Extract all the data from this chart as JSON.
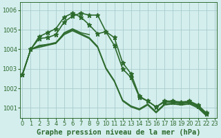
{
  "title": "Graphe pression niveau de la mer (hPa)",
  "bg_color": "#d4eeee",
  "grid_color": "#aacccc",
  "line_color": "#2d6a2d",
  "ylim": [
    1000.5,
    1006.4
  ],
  "yticks": [
    1001,
    1002,
    1003,
    1004,
    1005,
    1006
  ],
  "xlim": [
    -0.3,
    23.3
  ],
  "xticks": [
    0,
    1,
    2,
    3,
    4,
    5,
    6,
    7,
    8,
    9,
    10,
    11,
    12,
    13,
    14,
    15,
    16,
    17,
    18,
    19,
    20,
    21,
    22,
    23
  ],
  "series": [
    {
      "x": [
        0,
        1,
        2,
        3,
        4,
        5,
        6,
        7,
        8,
        9,
        10,
        11,
        12,
        13,
        14,
        15,
        16,
        17,
        18,
        19,
        20,
        21,
        22
      ],
      "y": [
        1002.7,
        1004.0,
        1004.65,
        1004.85,
        1005.05,
        1005.65,
        1005.85,
        1005.65,
        1005.25,
        1004.8,
        1004.9,
        1004.2,
        1003.0,
        1002.55,
        1001.55,
        1001.35,
        1001.05,
        1001.35,
        1001.35,
        1001.3,
        1001.35,
        1001.15,
        1000.75
      ],
      "marker": "*",
      "lw": 1.2,
      "ms": 4.5
    },
    {
      "x": [
        0,
        1,
        2,
        3,
        4,
        5,
        6,
        7,
        8,
        9,
        10,
        11,
        12,
        13,
        14,
        15,
        16,
        17,
        18,
        19,
        20,
        21,
        22
      ],
      "y": [
        1002.7,
        1004.0,
        1004.55,
        1004.6,
        1004.75,
        1005.4,
        1005.7,
        1005.85,
        1005.75,
        1005.75,
        1004.9,
        1004.6,
        1003.3,
        1002.75,
        1001.6,
        1001.35,
        1001.05,
        1001.3,
        1001.3,
        1001.25,
        1001.3,
        1001.1,
        1000.7
      ],
      "marker": "*",
      "lw": 1.2,
      "ms": 4.5
    },
    {
      "x": [
        0,
        1,
        2,
        3,
        4,
        5,
        6,
        7,
        8
      ],
      "y": [
        1002.7,
        1004.0,
        1004.2,
        1004.25,
        1004.3,
        1004.85,
        1005.05,
        1004.85,
        1004.75
      ],
      "marker": null,
      "lw": 1.1,
      "ms": 0
    },
    {
      "x": [
        0,
        1,
        2,
        3,
        4,
        5,
        6,
        7,
        8,
        9,
        10,
        11,
        12,
        13,
        14,
        15,
        16,
        17,
        18,
        19,
        20,
        21,
        22
      ],
      "y": [
        1002.7,
        1004.0,
        1004.1,
        1004.2,
        1004.3,
        1004.75,
        1004.95,
        1004.75,
        1004.55,
        1004.1,
        1003.0,
        1002.35,
        1001.35,
        1001.05,
        1000.9,
        1001.15,
        1000.75,
        1001.15,
        1001.2,
        1001.15,
        1001.2,
        1001.0,
        1000.6
      ],
      "marker": null,
      "lw": 1.1,
      "ms": 0
    },
    {
      "x": [
        0,
        1,
        2,
        3,
        4,
        5,
        6,
        7,
        8,
        9,
        10,
        11,
        12,
        13,
        14,
        15,
        16,
        17,
        18,
        19,
        20,
        21,
        22
      ],
      "y": [
        1002.7,
        1004.0,
        1004.15,
        1004.25,
        1004.35,
        1004.8,
        1005.0,
        1004.8,
        1004.6,
        1004.15,
        1003.05,
        1002.4,
        1001.4,
        1001.1,
        1000.95,
        1001.2,
        1000.8,
        1001.2,
        1001.25,
        1001.2,
        1001.25,
        1001.05,
        1000.65
      ],
      "marker": null,
      "lw": 1.1,
      "ms": 0
    }
  ],
  "xlabel_fontsize": 7.5,
  "tick_fontsize": 6.0,
  "tick_label_color": "#2d6a2d",
  "spine_color": "#2d6a2d"
}
